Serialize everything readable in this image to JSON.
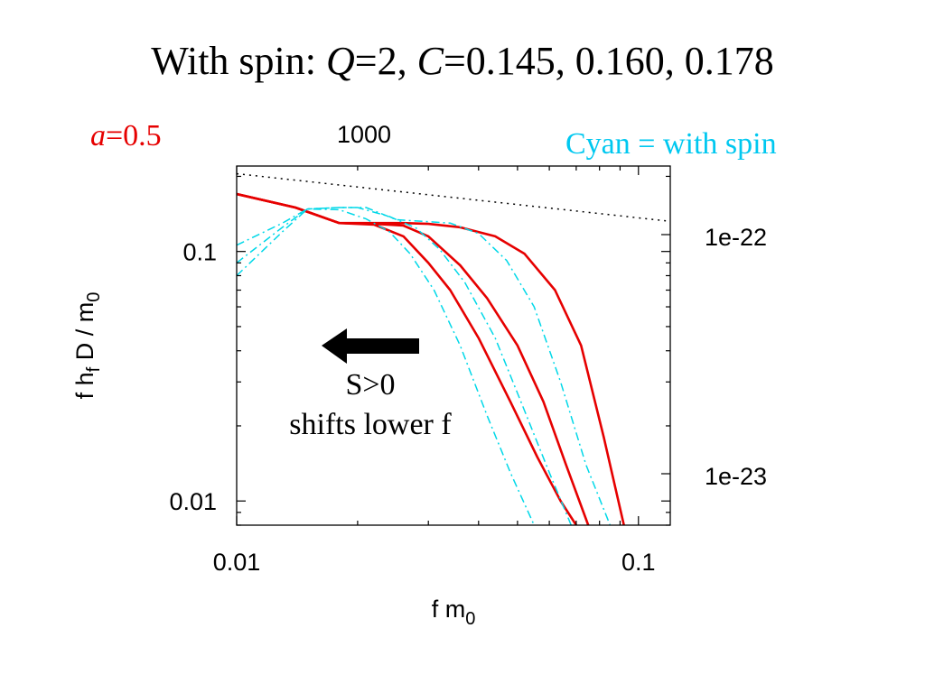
{
  "title": {
    "prefix": "With  spin: ",
    "q_symbol": "Q",
    "q_value": "=2, ",
    "c_symbol": "C",
    "c_value": "=0.145, 0.160, 0.178"
  },
  "a_label": {
    "symbol": "a",
    "value": "=0.5"
  },
  "legend_note": "Cyan = with  spin",
  "annotation": {
    "line1": "S>0",
    "line2": "shifts  lower  f"
  },
  "colors": {
    "no_spin": "#e60000",
    "with_spin": "#00d8e8",
    "reference": "#000000"
  },
  "chart_data": {
    "type": "line",
    "xlabel": "f m0",
    "ylabel": "f hf D / m0",
    "x_scale": "log",
    "y_scale": "log",
    "xlim": [
      0.01,
      0.12
    ],
    "ylim": [
      0.008,
      0.22
    ],
    "x_ticks": [
      0.01,
      0.1
    ],
    "x_tick_labels": [
      "0.01",
      "0.1"
    ],
    "y_ticks": [
      0.01,
      0.1
    ],
    "y_tick_labels": [
      "0.01",
      "0.1"
    ],
    "top_axis_label": "1000",
    "right_axis_labels": [
      "1e-22",
      "1e-23"
    ],
    "grid": false,
    "series": [
      {
        "color": "#e60000",
        "style": "solid",
        "x": [
          0.01,
          0.014,
          0.018,
          0.022,
          0.026,
          0.03,
          0.034,
          0.04,
          0.048,
          0.056,
          0.064,
          0.07
        ],
        "y": [
          0.17,
          0.15,
          0.13,
          0.128,
          0.115,
          0.09,
          0.07,
          0.045,
          0.025,
          0.015,
          0.01,
          0.008
        ]
      },
      {
        "color": "#e60000",
        "style": "solid",
        "x": [
          0.01,
          0.014,
          0.018,
          0.022,
          0.026,
          0.03,
          0.036,
          0.042,
          0.05,
          0.058,
          0.066,
          0.075
        ],
        "y": [
          0.17,
          0.15,
          0.13,
          0.129,
          0.127,
          0.115,
          0.088,
          0.065,
          0.042,
          0.025,
          0.014,
          0.008
        ]
      },
      {
        "color": "#e60000",
        "style": "solid",
        "x": [
          0.01,
          0.014,
          0.018,
          0.022,
          0.026,
          0.03,
          0.036,
          0.044,
          0.052,
          0.062,
          0.072,
          0.082,
          0.092
        ],
        "y": [
          0.17,
          0.15,
          0.13,
          0.13,
          0.13,
          0.129,
          0.125,
          0.115,
          0.098,
          0.07,
          0.042,
          0.018,
          0.008
        ]
      },
      {
        "color": "#00d8e8",
        "style": "dashdot",
        "x": [
          0.01,
          0.013,
          0.015,
          0.018,
          0.021,
          0.024,
          0.027,
          0.031,
          0.036,
          0.042,
          0.048,
          0.055
        ],
        "y": [
          0.08,
          0.12,
          0.148,
          0.147,
          0.135,
          0.12,
          0.098,
          0.07,
          0.042,
          0.022,
          0.013,
          0.008
        ]
      },
      {
        "color": "#00d8e8",
        "style": "dashdot",
        "x": [
          0.01,
          0.013,
          0.015,
          0.018,
          0.02,
          0.024,
          0.028,
          0.032,
          0.037,
          0.044,
          0.051,
          0.06,
          0.068
        ],
        "y": [
          0.09,
          0.125,
          0.148,
          0.15,
          0.15,
          0.138,
          0.124,
          0.102,
          0.075,
          0.045,
          0.025,
          0.013,
          0.008
        ]
      },
      {
        "color": "#00d8e8",
        "style": "dashdot",
        "x": [
          0.01,
          0.013,
          0.015,
          0.018,
          0.021,
          0.025,
          0.029,
          0.034,
          0.04,
          0.047,
          0.055,
          0.064,
          0.074,
          0.085
        ],
        "y": [
          0.106,
          0.13,
          0.148,
          0.15,
          0.15,
          0.134,
          0.132,
          0.13,
          0.118,
          0.092,
          0.06,
          0.03,
          0.014,
          0.008
        ]
      },
      {
        "color": "#000000",
        "style": "dotted",
        "x": [
          0.01,
          0.12
        ],
        "y": [
          0.205,
          0.132
        ]
      }
    ]
  }
}
